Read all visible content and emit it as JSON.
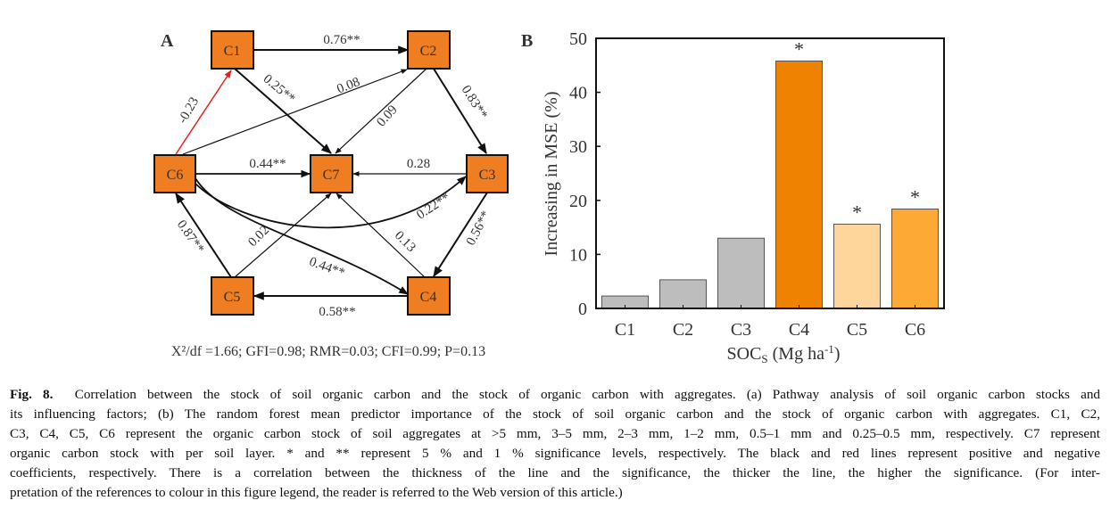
{
  "panel_a": {
    "label": "A",
    "nodes": {
      "C1": "C1",
      "C2": "C2",
      "C3": "C3",
      "C4": "C4",
      "C5": "C5",
      "C6": "C6",
      "C7": "C7"
    },
    "edges": [
      {
        "from": "C1",
        "to": "C2",
        "label": "0.76**",
        "sign": "positive"
      },
      {
        "from": "C1",
        "to": "C7",
        "label": "0.25**",
        "sign": "positive"
      },
      {
        "from": "C6",
        "to": "C2",
        "label": "0.08",
        "sign": "positive"
      },
      {
        "from": "C2",
        "to": "C7",
        "label": "0.09",
        "sign": "positive"
      },
      {
        "from": "C2",
        "to": "C3",
        "label": "0.83**",
        "sign": "positive"
      },
      {
        "from": "C6",
        "to": "C1",
        "label": "-0.23",
        "sign": "negative"
      },
      {
        "from": "C6",
        "to": "C7",
        "label": "0.44**",
        "sign": "positive"
      },
      {
        "from": "C3",
        "to": "C7",
        "label": "0.28",
        "sign": "positive"
      },
      {
        "from": "C6",
        "to": "C3",
        "label": "0.22**",
        "sign": "positive"
      },
      {
        "from": "C6",
        "to": "C4",
        "label": "0.44**",
        "sign": "positive"
      },
      {
        "from": "C5",
        "to": "C6",
        "label": "0.87**",
        "sign": "positive"
      },
      {
        "from": "C5",
        "to": "C7",
        "label": "0.02",
        "sign": "positive"
      },
      {
        "from": "C4",
        "to": "C7",
        "label": "0.13",
        "sign": "positive"
      },
      {
        "from": "C3",
        "to": "C4",
        "label": "0.56**",
        "sign": "positive"
      },
      {
        "from": "C4",
        "to": "C5",
        "label": "0.58**",
        "sign": "positive"
      }
    ],
    "fit_stats": "X²/df =1.66; GFI=0.98; RMR=0.03; CFI=0.99; P=0.13",
    "colors": {
      "node": "#ef7d22",
      "positive": "#111111",
      "negative": "#e8201c"
    }
  },
  "chart_data": {
    "type": "bar",
    "panel_label": "B",
    "categories": [
      "C1",
      "C2",
      "C3",
      "C4",
      "C5",
      "C6"
    ],
    "values": [
      2.3,
      5.3,
      13.0,
      45.8,
      15.6,
      18.4
    ],
    "significance": [
      "",
      "",
      "",
      "*",
      "*",
      "*"
    ],
    "colors": [
      "#bdbdbd",
      "#bdbdbd",
      "#bdbdbd",
      "#ef8200",
      "#fed59a",
      "#fcaa35"
    ],
    "ylabel": "Increasing in MSE (%)",
    "xlabel": "SOCS (Mg ha-1)",
    "xlabel_parts": {
      "main": "SOC",
      "sub": "S",
      "unit": " (Mg ha",
      "sup": "-1",
      "close": ")"
    },
    "ylim": [
      0,
      50
    ],
    "yticks": [
      "0",
      "10",
      "20",
      "30",
      "40",
      "50"
    ],
    "grid": false
  },
  "caption": {
    "fig_no": "Fig. 8.",
    "lines": [
      "Correlation between the stock of soil organic carbon and the stock of organic carbon with aggregates. (a) Pathway analysis of soil organic carbon stocks and",
      "its influencing factors; (b) The random forest mean predictor importance of the stock of soil organic carbon and the stock of organic carbon with aggregates. C1, C2,",
      "C3, C4, C5, C6 represent the organic carbon stock of soil aggregates at >5 mm, 3–5 mm, 2–3 mm, 1–2 mm, 0.5–1 mm and 0.25–0.5 mm, respectively. C7 represent",
      "organic carbon stock with per soil layer. * and ** represent 5 % and 1 % significance levels, respectively. The black and red lines represent positive and negative",
      "coefficients, respectively. There is a correlation between the thickness of the line and the significance, the thicker the line, the higher the significance. (For inter-",
      "pretation of the references to colour in this figure legend, the reader is referred to the Web version of this article.)"
    ]
  }
}
